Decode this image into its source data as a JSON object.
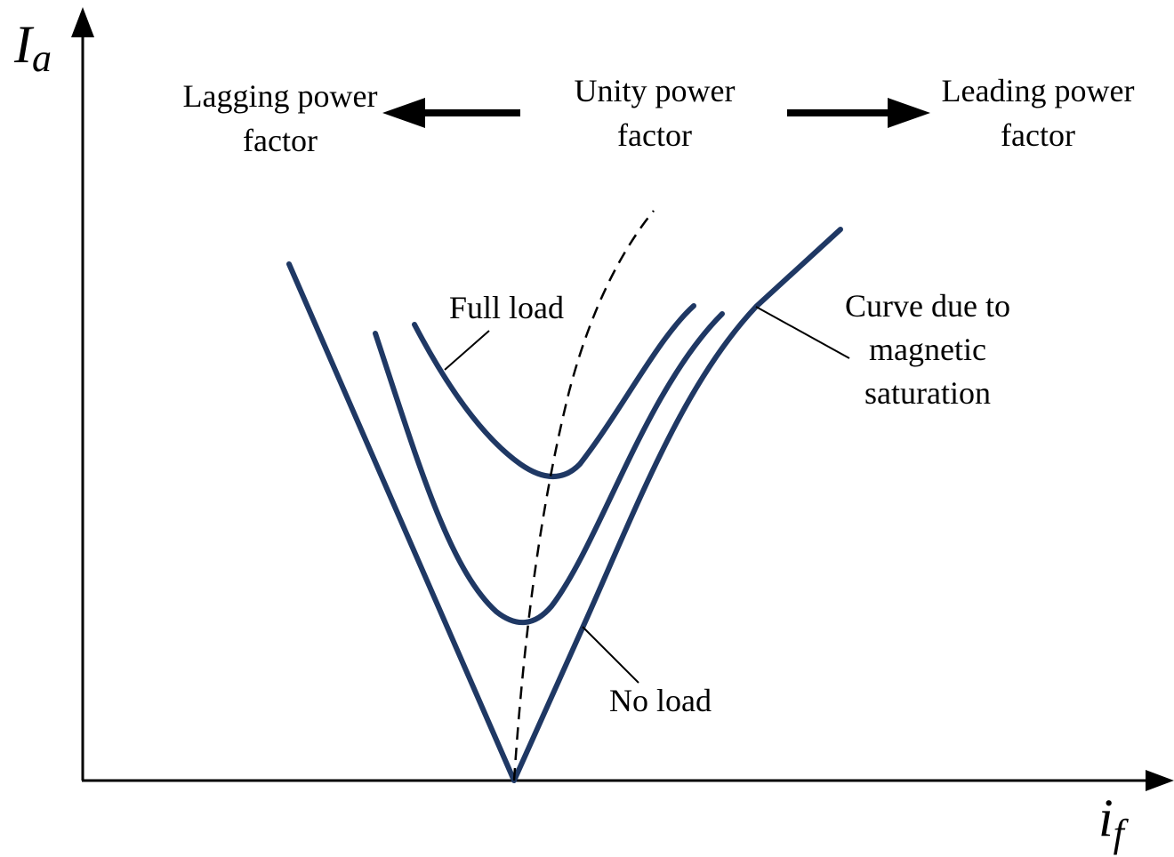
{
  "axes": {
    "y_label": {
      "main": "I",
      "sub": "a"
    },
    "x_label": {
      "main": "i",
      "sub": "f"
    }
  },
  "regions": {
    "lagging": [
      "Lagging power",
      "factor"
    ],
    "unity": [
      "Unity power",
      "factor"
    ],
    "leading": [
      "Leading power",
      "factor"
    ]
  },
  "labels": {
    "full_load": "Full load",
    "no_load": "No load",
    "saturation": [
      "Curve due to",
      "magnetic",
      "saturation"
    ]
  }
}
